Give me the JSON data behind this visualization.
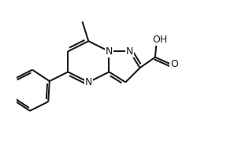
{
  "bg_color": "#ffffff",
  "line_color": "#1a1a1a",
  "line_width": 1.5,
  "figsize": [
    3.16,
    1.88
  ],
  "dpi": 100,
  "xlim": [
    -1.0,
    9.5
  ],
  "ylim": [
    -4.2,
    3.0
  ],
  "font_size": 8.5
}
